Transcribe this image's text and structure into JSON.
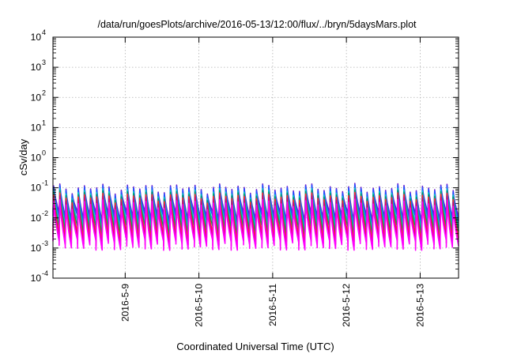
{
  "chart_data": {
    "type": "line",
    "title": "/data/run/goesPlots/archive/2016-05-13/12:00/flux/../bryn/5daysMars.plot",
    "xlabel": "Coordinated Universal Time (UTC)",
    "ylabel": "cSv/day",
    "y_scale": "log",
    "ylim": [
      0.0001,
      10000
    ],
    "xlim": [
      "2016-05-08T00:30",
      "2016-05-13T12:30"
    ],
    "grid": true,
    "legend": "none",
    "x_ticks": [
      {
        "label": "2016-5-9",
        "value": "2016-05-09"
      },
      {
        "label": "2016-5-10",
        "value": "2016-05-10"
      },
      {
        "label": "2016-5-11",
        "value": "2016-05-11"
      },
      {
        "label": "2016-5-12",
        "value": "2016-05-12"
      },
      {
        "label": "2016-5-13",
        "value": "2016-05-13"
      }
    ],
    "y_ticks": [
      {
        "base": "10",
        "exp": "-4",
        "value": 0.0001
      },
      {
        "base": "10",
        "exp": "-3",
        "value": 0.001
      },
      {
        "base": "10",
        "exp": "-2",
        "value": 0.01
      },
      {
        "base": "10",
        "exp": "-1",
        "value": 0.1
      },
      {
        "base": "10",
        "exp": "0",
        "value": 1
      },
      {
        "base": "10",
        "exp": "1",
        "value": 10
      },
      {
        "base": "10",
        "exp": "2",
        "value": 100
      },
      {
        "base": "10",
        "exp": "3",
        "value": 1000
      },
      {
        "base": "10",
        "exp": "4",
        "value": 10000
      }
    ],
    "sawtooth": {
      "period_hours": 2,
      "start_hour": 0,
      "end_hour": 132
    },
    "series": [
      {
        "color": "#ff00ff",
        "peak": 0.03,
        "trough": 0.0013
      },
      {
        "color": "#e0007a",
        "peak": 0.04,
        "trough": 0.0018
      },
      {
        "color": "#ff2a2a",
        "peak": 0.05,
        "trough": 0.0025
      },
      {
        "color": "#00a060",
        "peak": 0.06,
        "trough": 0.004
      },
      {
        "color": "#00c8c8",
        "peak": 0.07,
        "trough": 0.006
      },
      {
        "color": "#2050ff",
        "peak": 0.09,
        "trough": 0.009
      },
      {
        "color": "#6a20d0",
        "peak": 0.1,
        "trough": 0.012
      }
    ]
  }
}
